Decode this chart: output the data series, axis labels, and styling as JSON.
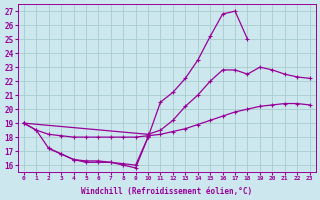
{
  "xlabel": "Windchill (Refroidissement éolien,°C)",
  "background_color": "#cce8ee",
  "grid_color": "#aacccc",
  "line_color": "#990099",
  "xlim": [
    -0.5,
    23.5
  ],
  "ylim": [
    15.5,
    27.5
  ],
  "xticks": [
    0,
    1,
    2,
    3,
    4,
    5,
    6,
    7,
    8,
    9,
    10,
    11,
    12,
    13,
    14,
    15,
    16,
    17,
    18,
    19,
    20,
    21,
    22,
    23
  ],
  "yticks": [
    16,
    17,
    18,
    19,
    20,
    21,
    22,
    23,
    24,
    25,
    26,
    27
  ],
  "curve_steep_x": [
    0,
    1,
    2,
    3,
    4,
    5,
    6,
    7,
    8,
    9,
    10,
    11,
    12,
    13,
    14,
    15,
    16,
    17,
    18
  ],
  "curve_steep_y": [
    19.0,
    18.5,
    17.2,
    16.8,
    16.4,
    16.3,
    16.3,
    16.2,
    16.1,
    16.0,
    18.0,
    20.5,
    21.2,
    22.2,
    23.5,
    25.2,
    26.8,
    27.0,
    25.0
  ],
  "curve_mid_x": [
    0,
    10,
    11,
    12,
    13,
    14,
    15,
    16,
    17,
    18,
    19,
    20,
    21,
    22,
    23
  ],
  "curve_mid_y": [
    19.0,
    18.2,
    18.5,
    19.2,
    20.2,
    21.0,
    22.0,
    22.8,
    22.8,
    22.5,
    23.0,
    22.8,
    22.5,
    22.3,
    22.2
  ],
  "curve_flat_x": [
    0,
    1,
    2,
    3,
    4,
    5,
    6,
    7,
    8,
    9,
    10,
    11,
    12,
    13,
    14,
    15,
    16,
    17,
    18,
    19,
    20,
    21,
    22,
    23
  ],
  "curve_flat_y": [
    19.0,
    18.5,
    18.2,
    18.1,
    18.0,
    18.0,
    18.0,
    18.0,
    18.0,
    18.0,
    18.1,
    18.2,
    18.4,
    18.6,
    18.9,
    19.2,
    19.5,
    19.8,
    20.0,
    20.2,
    20.3,
    20.4,
    20.4,
    20.3
  ],
  "curve_low_x": [
    2,
    3,
    4,
    5,
    6,
    7,
    8,
    9,
    10
  ],
  "curve_low_y": [
    17.2,
    16.8,
    16.4,
    16.2,
    16.2,
    16.2,
    16.0,
    15.8,
    18.0
  ]
}
